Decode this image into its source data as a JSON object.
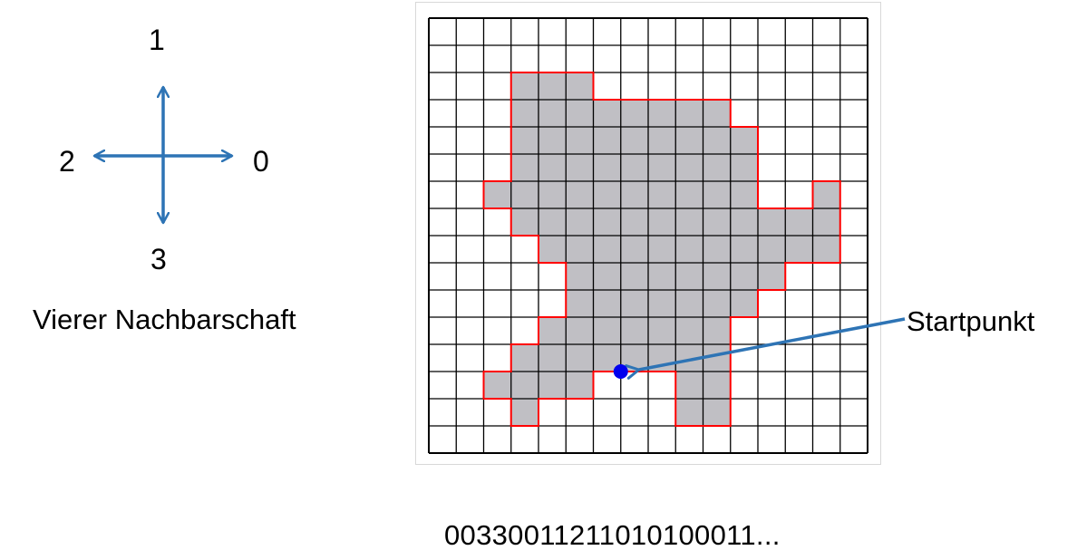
{
  "neighborhood": {
    "caption": "Vierer Nachbarschaft",
    "directions": {
      "right": "0",
      "up": "1",
      "left": "2",
      "down": "3"
    }
  },
  "grid": {
    "cols": 16,
    "rows": 16,
    "filled_color": "#c0bfc4",
    "line_color": "#000000",
    "boundary_color": "#ff0000",
    "filled_rows": [
      [],
      [],
      [
        3,
        4,
        5
      ],
      [
        3,
        4,
        5,
        6,
        7,
        8,
        9,
        10
      ],
      [
        3,
        4,
        5,
        6,
        7,
        8,
        9,
        10,
        11
      ],
      [
        3,
        4,
        5,
        6,
        7,
        8,
        9,
        10,
        11
      ],
      [
        2,
        3,
        4,
        5,
        6,
        7,
        8,
        9,
        10,
        11,
        14
      ],
      [
        3,
        4,
        5,
        6,
        7,
        8,
        9,
        10,
        11,
        12,
        13,
        14
      ],
      [
        4,
        5,
        6,
        7,
        8,
        9,
        10,
        11,
        12,
        13,
        14
      ],
      [
        5,
        6,
        7,
        8,
        9,
        10,
        11,
        12
      ],
      [
        5,
        6,
        7,
        8,
        9,
        10,
        11
      ],
      [
        4,
        5,
        6,
        7,
        8,
        9,
        10
      ],
      [
        3,
        4,
        5,
        6,
        7,
        8,
        9,
        10
      ],
      [
        2,
        3,
        4,
        5,
        9,
        10
      ],
      [
        3,
        9,
        10
      ],
      []
    ]
  },
  "start": {
    "label": "Startpunkt",
    "point_color": "#0000ee",
    "col": 7,
    "row": 13
  },
  "arrow_color": "#2e74b5",
  "chain_code": "00330011211010100011..."
}
